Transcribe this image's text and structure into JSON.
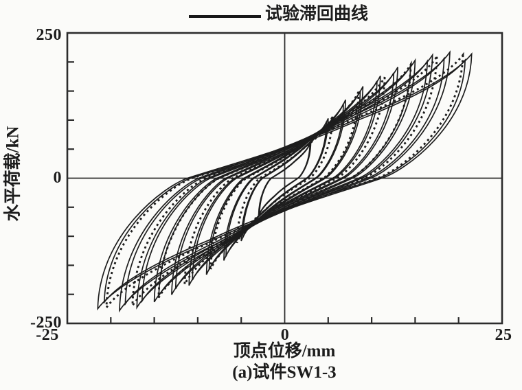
{
  "labels": {
    "y_tick_labels_display": [
      "250",
      "0",
      "-250"
    ],
    "x_tick_labels_display": [
      "-25",
      "0",
      "25"
    ]
  },
  "chart_data": {
    "type": "line",
    "subtype": "hysteresis_loops",
    "title": "",
    "legend": [
      {
        "label": "试验滞回曲线",
        "style": "solid"
      }
    ],
    "legend_position": "top-center",
    "xlabel": "顶点位移/mm",
    "ylabel": "水平荷载/kN",
    "caption": "(a)试件SW1-3",
    "xlim": [
      -25,
      25
    ],
    "ylim": [
      -250,
      250
    ],
    "x_major_ticks": [
      -25,
      0,
      25
    ],
    "x_minor_tick_step": 5,
    "y_major_ticks": [
      -250,
      0,
      250
    ],
    "y_minor_tick_step": 50,
    "grid": false,
    "origin_crosshair": true,
    "series": [
      {
        "name": "试验滞回曲线",
        "line_style": "solid",
        "repeats_per_amplitude": 2,
        "negative_peak_factor": 1.05,
        "residual_displacement_ratio": 0.52,
        "cycles_peak_points": [
          {
            "displacement_mm": 3.0,
            "load_kN": 62
          },
          {
            "displacement_mm": 5.0,
            "load_kN": 103
          },
          {
            "displacement_mm": 7.0,
            "load_kN": 135
          },
          {
            "displacement_mm": 9.0,
            "load_kN": 158
          },
          {
            "displacement_mm": 11.0,
            "load_kN": 176
          },
          {
            "displacement_mm": 13.0,
            "load_kN": 191
          },
          {
            "displacement_mm": 15.0,
            "load_kN": 203
          },
          {
            "displacement_mm": 17.0,
            "load_kN": 212
          },
          {
            "displacement_mm": 19.0,
            "load_kN": 217
          },
          {
            "displacement_mm": 21.5,
            "load_kN": 214
          }
        ]
      },
      {
        "name": "",
        "line_style": "dotted",
        "repeats_per_amplitude": 1,
        "negative_peak_factor": 1.05,
        "residual_displacement_ratio": 0.52,
        "cycles_peak_points": [
          {
            "displacement_mm": 5.5,
            "load_kN": 106
          },
          {
            "displacement_mm": 8.5,
            "load_kN": 149
          },
          {
            "displacement_mm": 11.5,
            "load_kN": 174
          },
          {
            "displacement_mm": 14.5,
            "load_kN": 196
          },
          {
            "displacement_mm": 17.5,
            "load_kN": 209
          },
          {
            "displacement_mm": 20.5,
            "load_kN": 212
          }
        ]
      }
    ],
    "colors": {
      "curve": "#1d1d1d",
      "axis": "#2c2c2c",
      "text": "#1c1c1c",
      "background": "#fbfbf9"
    }
  }
}
